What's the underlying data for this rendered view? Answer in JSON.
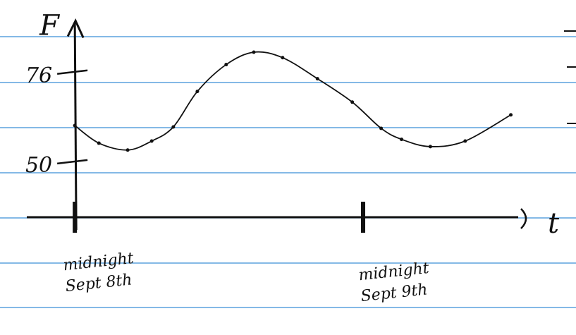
{
  "chart_data": {
    "type": "line",
    "y_label": "F",
    "x_label": "t",
    "x": [
      0,
      2.0,
      4.4,
      6.4,
      8.2,
      10.2,
      12.6,
      14.9,
      17.3,
      20.2,
      23.1,
      25.5,
      27.2,
      29.6,
      32.5,
      36.3
    ],
    "values": [
      60.6,
      55.5,
      53.5,
      56.1,
      60.2,
      70.5,
      78.3,
      81.9,
      80.3,
      74.2,
      67.4,
      59.8,
      56.6,
      54.5,
      56.1,
      63.7
    ],
    "color": "#111111",
    "xlim": [
      -4,
      37.5
    ],
    "xticks": [
      {
        "value": 0,
        "label": "midnight Sept 8th"
      },
      {
        "value": 24,
        "label": "midnight Sept 9th"
      }
    ],
    "ylim": [
      34,
      91
    ],
    "yticks": [
      76,
      50
    ]
  }
}
